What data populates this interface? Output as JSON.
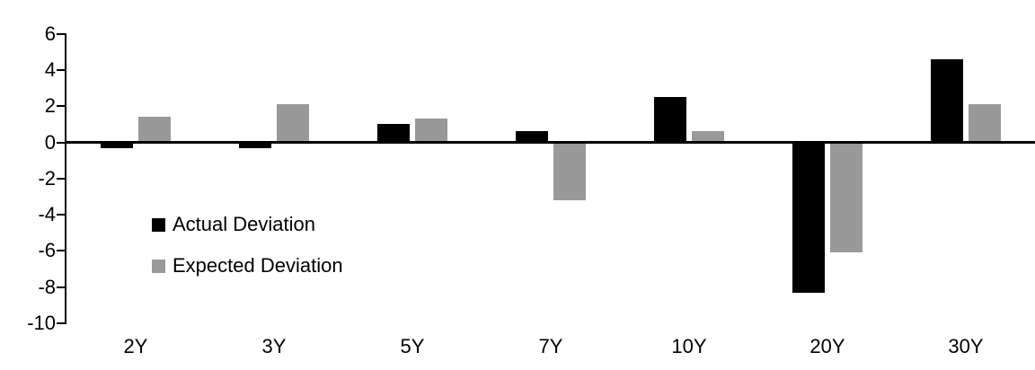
{
  "chart_data": {
    "type": "bar",
    "title": "",
    "xlabel": "",
    "ylabel": "",
    "categories": [
      "2Y",
      "3Y",
      "5Y",
      "7Y",
      "10Y",
      "20Y",
      "30Y"
    ],
    "series": [
      {
        "name": "Actual Deviation",
        "color": "#000000",
        "values": [
          -0.3,
          -0.3,
          1.0,
          0.6,
          2.5,
          -8.3,
          4.6
        ]
      },
      {
        "name": "Expected Deviation",
        "color": "#999999",
        "values": [
          1.4,
          2.1,
          1.3,
          -3.2,
          0.6,
          -6.1,
          2.1
        ]
      }
    ],
    "y_ticks": [
      6,
      4,
      2,
      0,
      -2,
      -4,
      -6,
      -8,
      -10
    ],
    "ylim": [
      -10,
      6
    ],
    "grid": false,
    "legend_position": "inside-left",
    "axis_color": "#000000",
    "background_color": "#ffffff"
  }
}
